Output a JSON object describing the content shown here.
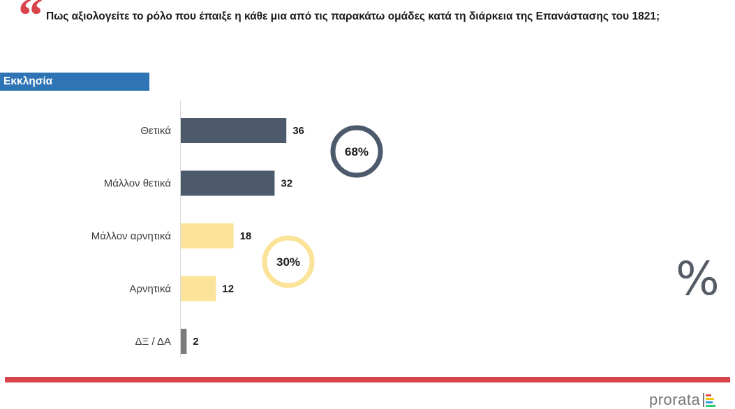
{
  "header": {
    "quote_glyph": "“",
    "title": "Πως αξιολογείτε το ρόλο που έπαιξε η κάθε μια από τις παρακάτω ομάδες κατά τη διάρκεια της Επανάστασης του 1821;"
  },
  "section": {
    "label": "Εκκλησία"
  },
  "chart_data": {
    "type": "bar",
    "orientation": "horizontal",
    "categories": [
      "Θετικά",
      "Μάλλον θετικά",
      "Μάλλον αρνητικά",
      "Αρνητικά",
      "ΔΞ / ΔΑ"
    ],
    "values": [
      36,
      32,
      18,
      12,
      2
    ],
    "value_labels": [
      "36",
      "32",
      "18",
      "12",
      "2"
    ],
    "bar_colors": [
      "#4d5a6b",
      "#4d5a6b",
      "#fbe49a",
      "#fbe49a",
      "#7b7b7b"
    ],
    "xlim": [
      0,
      100
    ],
    "grid": false,
    "summaries": [
      {
        "label": "68%",
        "value": 68,
        "color": "#4d5a6b"
      },
      {
        "label": "30%",
        "value": 30,
        "color": "#fbe49a"
      }
    ]
  },
  "decor": {
    "percent_symbol": "%"
  },
  "footer": {
    "brand": "prorata"
  },
  "colors": {
    "section_bg": "#2f74b5",
    "red_rule": "#d9434a",
    "axis": "#d8d8d8",
    "brand_marks": [
      "#e74c3c",
      "#f1c40f",
      "#3498db",
      "#2ecc71"
    ]
  }
}
